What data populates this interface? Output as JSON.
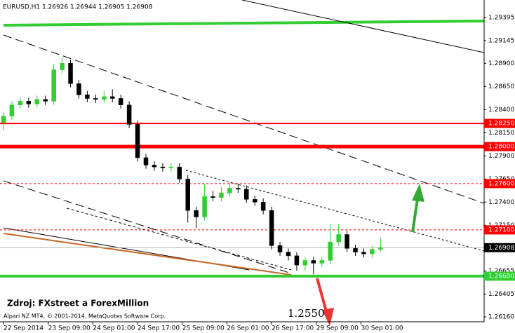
{
  "chart_data": {
    "type": "candlestick",
    "title": "EURUSD,H1  1.26926 1.26944 1.26905 1.26908",
    "source_note": "Zdroj: FXstreet a ForexMillion",
    "copyright": "Alpari NZ MT4, © 2001-2014, MetaQuotes Software Corp.",
    "annotation": "1.2550",
    "up_color": "#33cc33",
    "down_color": "#000000",
    "x": [
      0,
      3,
      6,
      9,
      12,
      15,
      18,
      21,
      24,
      27,
      30,
      33,
      36,
      39,
      42,
      45,
      48,
      51,
      54,
      57,
      60,
      63,
      66,
      69,
      72,
      75,
      78,
      81,
      84,
      87,
      90,
      93,
      96,
      99,
      102,
      105,
      108,
      111,
      114,
      117,
      120,
      123,
      126,
      129,
      132,
      135
    ],
    "open": [
      1.2826,
      1.2833,
      1.2845,
      1.2849,
      1.2846,
      1.2851,
      1.2849,
      1.2883,
      1.289,
      1.2868,
      1.2856,
      1.2852,
      1.2851,
      1.2854,
      1.2852,
      1.2845,
      1.2824,
      1.2788,
      1.278,
      1.2778,
      1.2777,
      1.2778,
      1.2765,
      1.2731,
      1.2724,
      1.2746,
      1.2745,
      1.275,
      1.2755,
      1.2754,
      1.2743,
      1.274,
      1.2731,
      1.2693,
      1.2686,
      1.2682,
      1.2672,
      1.2677,
      1.2674,
      1.2677,
      1.2697,
      1.2705,
      1.269,
      1.2686,
      1.2684,
      1.2689
    ],
    "high": [
      1.2837,
      1.2849,
      1.2853,
      1.2853,
      1.2855,
      1.2855,
      1.2889,
      1.2897,
      1.2894,
      1.2872,
      1.286,
      1.2856,
      1.286,
      1.2862,
      1.2856,
      1.2849,
      1.2828,
      1.2792,
      1.2784,
      1.2782,
      1.2782,
      1.2782,
      1.2769,
      1.2735,
      1.276,
      1.2752,
      1.2756,
      1.2761,
      1.276,
      1.2758,
      1.2747,
      1.2744,
      1.2735,
      1.2697,
      1.269,
      1.2686,
      1.2681,
      1.2681,
      1.2681,
      1.2716,
      1.2716,
      1.2709,
      1.2694,
      1.269,
      1.2693,
      1.2702
    ],
    "low": [
      1.2818,
      1.2829,
      1.2841,
      1.2842,
      1.2842,
      1.2845,
      1.2845,
      1.2879,
      1.2864,
      1.2852,
      1.2848,
      1.2847,
      1.2847,
      1.2848,
      1.2841,
      1.282,
      1.2784,
      1.2776,
      1.2774,
      1.2773,
      1.2773,
      1.2761,
      1.2718,
      1.2712,
      1.272,
      1.2741,
      1.2741,
      1.2746,
      1.275,
      1.2739,
      1.2736,
      1.2727,
      1.2689,
      1.2682,
      1.2677,
      1.2666,
      1.2666,
      1.2662,
      1.267,
      1.2673,
      1.2693,
      1.2686,
      1.2682,
      1.268,
      1.268,
      1.2686
    ],
    "close": [
      1.2833,
      1.2845,
      1.2849,
      1.2846,
      1.2851,
      1.2849,
      1.2883,
      1.289,
      1.2868,
      1.2856,
      1.2852,
      1.2851,
      1.2854,
      1.2852,
      1.2845,
      1.2824,
      1.2788,
      1.278,
      1.2778,
      1.2777,
      1.2778,
      1.2765,
      1.2731,
      1.2724,
      1.2746,
      1.2745,
      1.275,
      1.2755,
      1.2754,
      1.2743,
      1.274,
      1.2731,
      1.2693,
      1.2686,
      1.2682,
      1.2672,
      1.2677,
      1.2674,
      1.2677,
      1.2697,
      1.2705,
      1.269,
      1.2686,
      1.2684,
      1.2689,
      1.26908
    ],
    "xlim": [
      -1.256,
      172.1
    ],
    "ylim": [
      1.26107,
      1.29584
    ],
    "xticks": [
      {
        "value": 0,
        "label": "22 Sep 2014"
      },
      {
        "value": 16,
        "label": "23 Sep 09:00"
      },
      {
        "value": 32,
        "label": "24 Sep 01:00"
      },
      {
        "value": 48,
        "label": "24 Sep 17:00"
      },
      {
        "value": 64,
        "label": "25 Sep 09:00"
      },
      {
        "value": 80,
        "label": "26 Sep 01:00"
      },
      {
        "value": 96,
        "label": "26 Sep 17:00"
      },
      {
        "value": 112,
        "label": "29 Sep 09:00"
      },
      {
        "value": 128,
        "label": "30 Sep 01:00"
      }
    ],
    "yticks": [
      1.29395,
      1.29145,
      {
        "value": 1.289,
        "label": "1.28900"
      },
      {
        "value": 1.2865,
        "label": "1.28650"
      },
      {
        "value": 1.284,
        "label": "1.28400"
      },
      {
        "value": 1.2815,
        "label": "1.28150"
      },
      {
        "value": 1.279,
        "label": "1.27900"
      },
      {
        "value": 1.2765,
        "label": "1.27650"
      },
      {
        "value": 1.274,
        "label": "1.27400"
      },
      {
        "value": 1.2715,
        "label": "1.27150"
      },
      1.26655,
      1.26405,
      {
        "value": 1.2616,
        "label": "1.26160"
      }
    ],
    "levels": [
      {
        "value": 1.2825,
        "label": "1.28250",
        "color": "#ff0000",
        "label_bg": "#ff0000",
        "width": 2,
        "style": "solid"
      },
      {
        "value": 1.28,
        "label": "1.28000",
        "color": "#ff0000",
        "label_bg": "#ff0000",
        "width": 5,
        "style": "solid"
      },
      {
        "value": 1.276,
        "label": "1.27600",
        "color": "#ff0000",
        "label_bg": "#ff0000",
        "width": 1,
        "style": "dotted"
      },
      {
        "value": 1.271,
        "label": "1.27100",
        "color": "#ff0000",
        "label_bg": "#ff0000",
        "width": 1,
        "style": "dotted"
      },
      {
        "value": 1.26908,
        "label": "1.26908",
        "color": "#b0b8b0",
        "label_bg": "#000000",
        "width": 1,
        "style": "solid"
      },
      {
        "value": 1.266,
        "label": "1.26600",
        "color": "#33cc33",
        "label_bg": "#33cc33",
        "width": 4,
        "style": "solid"
      }
    ]
  }
}
